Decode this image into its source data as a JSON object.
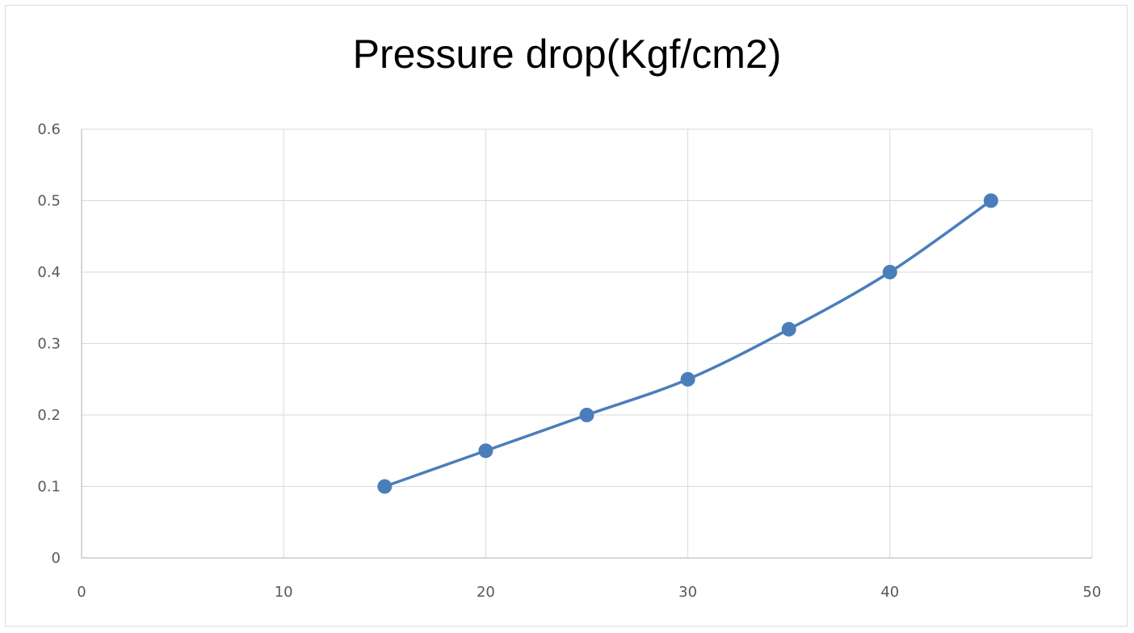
{
  "chart_data": {
    "type": "scatter",
    "title": "Pressure drop(Kgf/cm2)",
    "xlabel": "",
    "ylabel": "",
    "xlim": [
      0,
      50
    ],
    "ylim": [
      0,
      0.6
    ],
    "x_ticks": [
      "0",
      "10",
      "20",
      "30",
      "40",
      "50"
    ],
    "y_ticks": [
      "0",
      "0.1",
      "0.2",
      "0.3",
      "0.4",
      "0.5",
      "0.6"
    ],
    "grid": true,
    "legend": "none",
    "series": [
      {
        "x": [
          15,
          20,
          25,
          30,
          35,
          40,
          45
        ],
        "values": [
          0.1,
          0.15,
          0.2,
          0.25,
          0.32,
          0.4,
          0.5
        ],
        "color": "#4a7ebb",
        "line": "smooth",
        "marker": "circle"
      }
    ]
  }
}
